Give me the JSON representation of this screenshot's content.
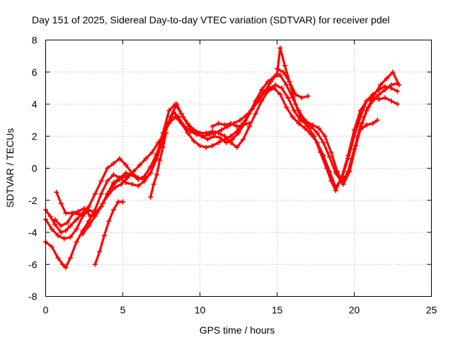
{
  "chart_data": {
    "type": "scatter",
    "title": "Day 151 of 2025, Sidereal Day-to-day VTEC variation (SDTVAR) for receiver pdel",
    "xlabel": "GPS time / hours",
    "ylabel": "SDTVAR / TECUs",
    "xlim": [
      0,
      25
    ],
    "ylim": [
      -8,
      8
    ],
    "xticks": [
      "0",
      "5",
      "10",
      "15",
      "20",
      "25"
    ],
    "yticks": [
      "-8",
      "-6",
      "-4",
      "-2",
      "0",
      "2",
      "4",
      "6",
      "8"
    ],
    "grid": true,
    "marker": "plus",
    "color": "#ff0000",
    "series": [
      {
        "x": [
          0.0,
          0.4,
          0.8,
          1.1,
          1.3,
          1.6,
          2.0,
          2.4,
          2.8,
          3.2,
          3.6,
          4.0,
          4.4,
          4.8,
          5.2,
          5.6,
          6.0,
          6.4,
          6.8,
          7.2,
          7.6,
          8.0,
          8.3,
          8.6,
          9.0,
          9.4,
          9.8,
          10.2,
          10.6,
          11.0,
          11.4,
          11.8,
          12.2,
          12.6,
          13.0,
          13.4,
          13.8,
          14.2,
          14.6,
          15.0,
          15.2,
          15.5,
          15.8,
          16.2,
          16.6,
          17.0,
          17.4,
          17.8,
          18.2,
          18.5,
          18.8,
          19.2,
          19.6,
          20.0,
          20.4,
          20.8,
          21.2,
          21.6,
          22.0,
          22.4,
          22.8
        ],
        "y": [
          -4.6,
          -4.9,
          -5.6,
          -6.0,
          -6.2,
          -5.6,
          -4.6,
          -3.9,
          -3.3,
          -2.6,
          -1.6,
          -0.8,
          -0.4,
          -0.6,
          -0.9,
          -1.0,
          -1.1,
          -0.8,
          -0.3,
          0.6,
          1.8,
          2.9,
          3.5,
          3.2,
          2.6,
          2.3,
          2.1,
          2.0,
          2.1,
          2.2,
          2.4,
          2.6,
          2.8,
          3.0,
          3.3,
          3.7,
          4.2,
          4.8,
          5.4,
          5.9,
          7.5,
          6.4,
          5.4,
          4.0,
          3.0,
          2.6,
          2.0,
          1.0,
          0.0,
          -0.8,
          -1.4,
          -0.5,
          0.8,
          2.4,
          3.6,
          4.2,
          4.6,
          4.9,
          5.1,
          5.0,
          4.8
        ]
      },
      {
        "x": [
          0.0,
          0.4,
          0.8,
          1.2,
          1.6,
          2.0,
          2.4,
          2.8,
          3.2,
          3.6,
          4.0,
          4.4,
          4.8,
          5.2,
          5.6,
          6.0,
          6.4,
          6.8,
          7.2,
          7.6,
          8.0,
          8.4,
          8.8,
          9.2,
          9.6,
          10.0,
          10.4,
          10.8,
          11.2,
          11.6,
          12.0,
          12.4,
          12.8,
          13.2,
          13.6,
          14.0,
          14.4,
          14.8,
          15.2,
          15.6,
          16.0,
          16.4,
          16.8,
          17.2,
          17.6,
          18.0,
          18.4,
          18.8,
          19.2,
          19.6,
          20.0,
          20.4,
          20.8,
          21.2,
          21.6,
          22.0,
          22.4,
          22.8
        ],
        "y": [
          -3.2,
          -3.8,
          -4.2,
          -4.4,
          -4.3,
          -3.8,
          -3.0,
          -2.6,
          -2.8,
          -2.4,
          -1.6,
          -0.9,
          -0.6,
          -0.3,
          -0.4,
          -0.7,
          -0.5,
          0.1,
          0.9,
          2.0,
          2.8,
          3.2,
          2.8,
          2.2,
          1.7,
          1.4,
          1.3,
          1.4,
          1.6,
          1.8,
          2.0,
          2.3,
          2.8,
          3.4,
          4.2,
          4.9,
          5.4,
          5.7,
          5.8,
          5.2,
          4.4,
          3.6,
          3.0,
          2.6,
          2.2,
          1.6,
          0.7,
          -0.3,
          -0.9,
          -0.2,
          1.2,
          2.6,
          3.6,
          4.2,
          4.6,
          4.9,
          5.2,
          5.3
        ]
      },
      {
        "x": [
          0.0,
          0.3,
          0.6,
          1.0,
          1.3,
          1.6,
          2.0,
          2.4,
          2.8,
          3.2,
          3.6,
          4.0,
          4.4,
          4.8,
          5.2,
          5.6,
          6.0,
          6.4,
          6.8,
          7.2,
          7.6,
          8.0,
          8.4,
          8.8,
          9.2,
          9.6,
          10.0,
          10.4,
          10.8,
          11.2,
          11.6,
          12.0,
          12.4,
          12.8,
          13.2,
          13.6,
          14.0,
          14.4,
          14.8,
          15.2,
          15.6,
          16.0,
          16.4,
          16.8,
          17.2,
          17.6,
          18.0,
          18.4,
          18.8,
          19.2,
          19.6,
          20.0,
          20.4,
          20.8,
          21.2,
          21.6,
          22.0,
          22.4,
          22.8
        ],
        "y": [
          -2.6,
          -3.0,
          -3.5,
          -4.0,
          -3.9,
          -3.6,
          -3.2,
          -2.8,
          -2.4,
          -1.6,
          -0.8,
          0.0,
          0.3,
          0.6,
          0.2,
          -0.3,
          -0.6,
          -0.7,
          -0.3,
          0.8,
          2.2,
          3.6,
          4.0,
          3.4,
          2.8,
          2.4,
          2.2,
          2.2,
          2.3,
          2.2,
          2.0,
          1.6,
          1.3,
          1.8,
          2.6,
          3.4,
          4.2,
          4.8,
          5.0,
          4.6,
          3.8,
          3.2,
          2.8,
          2.5,
          2.1,
          1.6,
          0.8,
          -0.2,
          -1.2,
          -0.6,
          0.6,
          2.0,
          3.2,
          4.2,
          4.4,
          4.3,
          4.4,
          4.2,
          4.0
        ]
      },
      {
        "x": [
          0.7,
          1.0,
          1.3,
          1.7,
          2.1,
          2.5,
          2.9,
          3.3,
          3.7,
          4.1,
          4.5,
          4.9,
          5.3,
          5.7,
          6.1,
          6.5,
          6.9,
          7.3,
          7.7,
          8.1,
          8.5,
          8.9,
          9.3,
          9.7,
          10.1,
          10.5,
          10.9,
          11.3,
          11.7,
          12.1,
          12.5,
          12.9,
          13.3,
          13.7,
          14.1,
          14.5,
          14.9,
          15.3,
          15.7,
          16.1,
          16.5,
          16.9,
          17.3,
          17.7,
          18.1,
          18.5,
          18.9,
          19.3,
          19.7,
          20.1,
          20.5,
          20.9,
          21.3,
          21.7,
          22.1,
          22.5,
          22.9
        ],
        "y": [
          -1.5,
          -2.2,
          -2.8,
          -2.8,
          -2.7,
          -2.5,
          -3.0,
          -2.8,
          -2.2,
          -1.6,
          -1.2,
          -1.0,
          -0.6,
          -0.2,
          0.2,
          0.6,
          1.0,
          1.6,
          2.2,
          3.2,
          4.0,
          3.2,
          2.6,
          2.2,
          2.0,
          1.8,
          2.0,
          1.9,
          1.6,
          1.8,
          2.2,
          2.8,
          3.6,
          4.2,
          4.7,
          5.0,
          5.2,
          5.0,
          4.4,
          3.6,
          3.0,
          2.9,
          2.7,
          2.5,
          2.0,
          1.0,
          -0.2,
          -1.0,
          -0.2,
          1.4,
          2.8,
          3.8,
          4.6,
          5.2,
          5.6,
          6.0,
          5.2
        ]
      },
      {
        "x": [
          3.2,
          3.5,
          3.8,
          4.1,
          4.4,
          4.7,
          5.0
        ],
        "y": [
          -6.0,
          -5.2,
          -4.2,
          -3.3,
          -2.6,
          -2.1,
          -2.1
        ]
      },
      {
        "x": [
          2.4,
          2.8,
          3.2,
          3.6,
          4.0,
          4.4,
          4.8,
          5.2,
          5.6
        ],
        "y": [
          -4.1,
          -3.6,
          -3.0,
          -2.4,
          -1.6,
          -1.0,
          -0.7,
          -0.5,
          -0.4
        ]
      },
      {
        "x": [
          6.8,
          7.0,
          7.2,
          7.4,
          7.6,
          7.8
        ],
        "y": [
          -1.8,
          -1.0,
          -0.4,
          0.5,
          1.3,
          2.2
        ]
      },
      {
        "x": [
          10.8,
          11.2,
          11.6,
          12.0,
          12.4,
          12.8,
          13.2
        ],
        "y": [
          2.6,
          2.8,
          2.7,
          2.8,
          2.6,
          2.7,
          2.8
        ]
      },
      {
        "x": [
          15.0,
          15.4,
          15.8,
          16.2,
          16.6,
          17.0
        ],
        "y": [
          6.2,
          6.0,
          5.4,
          4.6,
          4.4,
          4.5
        ]
      },
      {
        "x": [
          20.4,
          20.8,
          21.2,
          21.5
        ],
        "y": [
          2.4,
          2.7,
          2.8,
          3.0
        ]
      },
      {
        "x": [
          0.6,
          1.0,
          1.4,
          1.8,
          2.2
        ],
        "y": [
          -3.2,
          -3.6,
          -3.4,
          -2.8,
          -2.9
        ]
      }
    ]
  }
}
